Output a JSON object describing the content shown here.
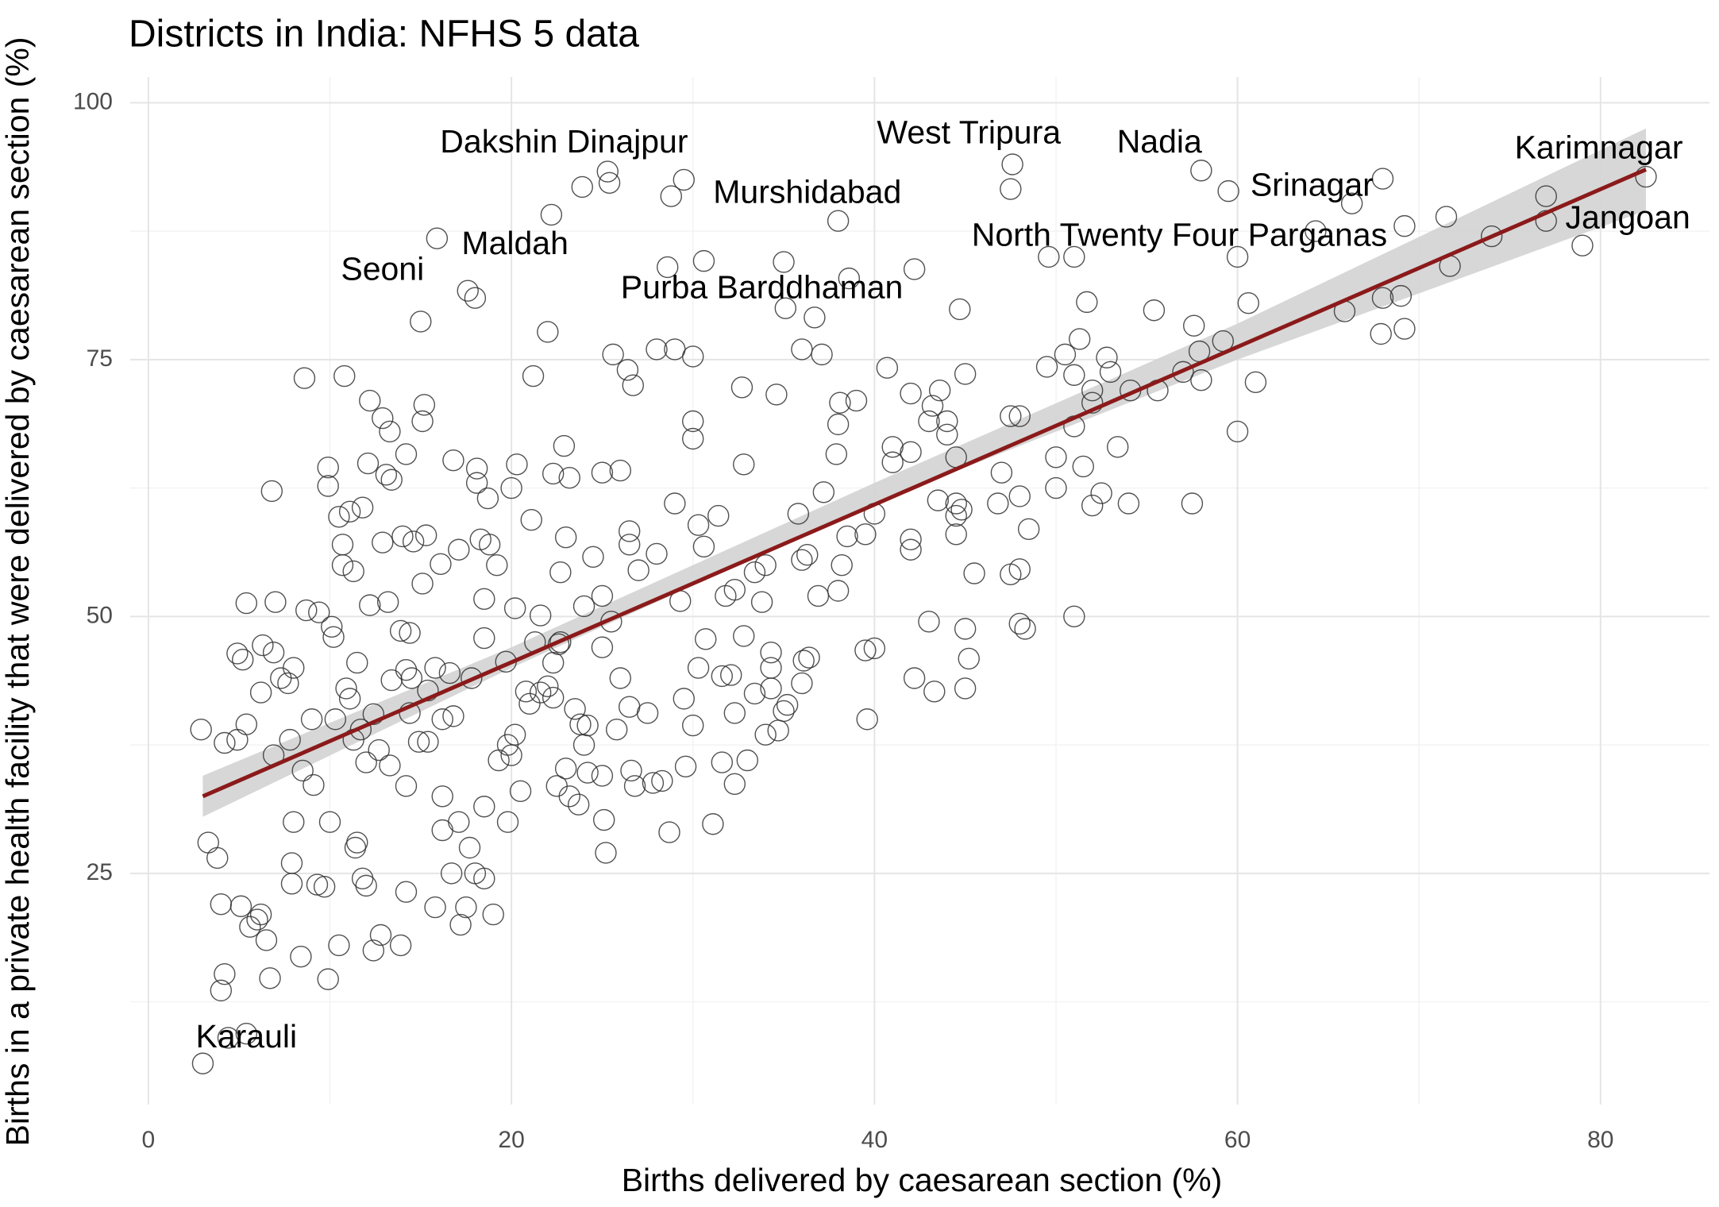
{
  "chart_data": {
    "type": "scatter",
    "title": "Districts in India: NFHS 5 data",
    "xlabel": "Births delivered by caesarean section (%)",
    "ylabel": "Births in a private health facility that were delivered by caesarean section (%)",
    "xlim": [
      -1,
      86
    ],
    "ylim": [
      2.5,
      102.5
    ],
    "xticks": [
      0,
      20,
      40,
      60,
      80
    ],
    "yticks": [
      25,
      50,
      75,
      100
    ],
    "grid": true,
    "series": [
      {
        "color": "#333333",
        "x": [
          25.3,
          25.4,
          29.5,
          28.8,
          23.9,
          22.2,
          38,
          35,
          47.6,
          47.5,
          58,
          59.5,
          68,
          66.3,
          82.5,
          77,
          79,
          77,
          71.5,
          69.2,
          64.3,
          15.9,
          17.6,
          18,
          15,
          22,
          28.6,
          30.6,
          36.7,
          35.1,
          38.6,
          42.2,
          44.7,
          49.6,
          51,
          60,
          60.6,
          51.7,
          55.4,
          57.6,
          59.2,
          57.9,
          65.9,
          68,
          69,
          67.9,
          69.2,
          71.7,
          74,
          25.6,
          26.4,
          26.7,
          28,
          29,
          30,
          32.7,
          34.6,
          37.1,
          36,
          39,
          40.7,
          42,
          43.6,
          43.2,
          44,
          45,
          47.5,
          48,
          49.5,
          50.5,
          51,
          51.3,
          52.8,
          53,
          54.1,
          55.6,
          57,
          58,
          60,
          61,
          52,
          51,
          52,
          53.4,
          54,
          57.5,
          52,
          51.5,
          50,
          50,
          48.5,
          48,
          46.8,
          47,
          48,
          47.5,
          48,
          51,
          45.5,
          44.5,
          45,
          45.2,
          45,
          43.3,
          42.2,
          43,
          42,
          42,
          40,
          39.5,
          39.6,
          38.2,
          38.5,
          39.5,
          40,
          41,
          41,
          42,
          43,
          44,
          44.5,
          37.9,
          38,
          38.1,
          37.2,
          38,
          36.9,
          36.3,
          36,
          35.8,
          34,
          33.4,
          32.8,
          31.4,
          30.3,
          30.6,
          30,
          30,
          29,
          28,
          27,
          26.5,
          26.5,
          26,
          25,
          24.5,
          25,
          24,
          25.5,
          25,
          26,
          26.5,
          27.5,
          28.3,
          29.6,
          28.7,
          30,
          30.3,
          29.5,
          31.1,
          31.6,
          32.1,
          32.3,
          32.8,
          33,
          33.4,
          34.3,
          34.3,
          34.7,
          35,
          36.1,
          36,
          36.4,
          25.1,
          25.2,
          25,
          24.2,
          23.5,
          22.5,
          23.2,
          23.7,
          24,
          21.6,
          21,
          20.2,
          19.8,
          20.5,
          20,
          19,
          18.5,
          18,
          17.2,
          17.5,
          16.7,
          16.2,
          15.8,
          14.2,
          13.9,
          12.8,
          12.4,
          12,
          11.8,
          11.4,
          10.5,
          9.9,
          9.3,
          9.7,
          8.4,
          7.9,
          7.9,
          6.7,
          6.5,
          6.2,
          6,
          5.6,
          5.1,
          4,
          4,
          4.2,
          5.4,
          4.4,
          3,
          2.9,
          3.3,
          3.8,
          4.2,
          4.9,
          5.4,
          4.9,
          5.2,
          5.4,
          6.3,
          6.9,
          7,
          7.3,
          6.2,
          6.9,
          7.7,
          8,
          8.7,
          9.4,
          10.1,
          10.2,
          10.9,
          11.1,
          11.5,
          9.1,
          10,
          8,
          8.5,
          7.8,
          9,
          10.3,
          11.3,
          12,
          13.3,
          14.2,
          14.9,
          15.4,
          16.2,
          17.1,
          17.7,
          18.5,
          19.3,
          19.8,
          8.6,
          6.8,
          9.9,
          9.9,
          10.5,
          11.1,
          10.7,
          10.7,
          11.3,
          10.8,
          12.2,
          12.9,
          13.3,
          12.1,
          13.1,
          13.4,
          14.2,
          15.2,
          15.1,
          16.8,
          18.1,
          18.1,
          18.7,
          18.3,
          18.8,
          19.2,
          20.3,
          20,
          21.1,
          21.2,
          22.3,
          23.2,
          22.9,
          21.6,
          22.7,
          23,
          22.3,
          22.6,
          20.2,
          18.5,
          18.5,
          19.7,
          13.2,
          12.2,
          13.9,
          14.4,
          14,
          14.6,
          15.3,
          16.1,
          17.1,
          15.1,
          12.9,
          11.8,
          14.2,
          14.5,
          13.4,
          15.8,
          16.6,
          17.8,
          16.8,
          16.2,
          15.4,
          14.4,
          12.4,
          11.7,
          11.5,
          12.7,
          26.6,
          26.8,
          27.8,
          25.8,
          29.3,
          30.7,
          31.8,
          32.3,
          33.8,
          34.3,
          35.2,
          31.6,
          32.3,
          34,
          24.2,
          23,
          23.8,
          22.3,
          22,
          20.8,
          21.3,
          22.7,
          44.8,
          44.5,
          44.5,
          43.5,
          48.3,
          52.5
        ],
        "y": [
          93.3,
          92.2,
          92.5,
          90.9,
          91.8,
          89.1,
          88.5,
          84.5,
          94,
          91.6,
          93.4,
          91.4,
          92.6,
          90.2,
          92.8,
          90.9,
          86.1,
          88.5,
          88.9,
          88,
          87.5,
          86.8,
          81.7,
          81,
          78.7,
          77.7,
          84,
          84.6,
          79.1,
          80,
          82.9,
          83.8,
          79.9,
          85,
          85,
          85,
          80.5,
          80.6,
          79.8,
          78.3,
          76.8,
          75.8,
          79.7,
          81,
          81.2,
          77.5,
          78,
          84.1,
          87,
          75.5,
          74,
          72.5,
          76,
          76,
          75.3,
          72.3,
          71.6,
          75.5,
          76,
          71,
          74.2,
          71.7,
          72,
          70.5,
          69,
          73.6,
          69.5,
          69.5,
          74.3,
          75.5,
          73.5,
          77,
          75.2,
          73.8,
          72,
          72,
          73.8,
          73,
          68,
          72.8,
          72,
          68.5,
          70.8,
          66.5,
          61,
          61,
          60.8,
          64.6,
          62.5,
          65.5,
          58.5,
          61.7,
          61,
          64,
          54.6,
          54.1,
          49.3,
          50,
          54.2,
          58,
          48.8,
          45.9,
          43,
          42.7,
          44,
          49.5,
          56.5,
          57.5,
          46.9,
          46.7,
          40,
          55,
          57.8,
          58,
          60,
          65,
          66.5,
          66,
          69,
          67.7,
          65.5,
          65.8,
          68.7,
          70.8,
          62.1,
          52.5,
          52,
          56,
          55.5,
          60,
          55,
          54.3,
          64.8,
          59.8,
          58.9,
          56.8,
          67.3,
          69,
          61,
          56.1,
          54.5,
          57,
          58.3,
          64.2,
          64,
          55.8,
          52,
          51,
          49.5,
          47,
          44,
          41.2,
          40.6,
          34,
          35.4,
          29,
          39.4,
          45,
          42,
          29.8,
          35.8,
          44.3,
          33.7,
          48.1,
          36,
          42.5,
          45,
          43,
          38.9,
          40.8,
          45.7,
          43.5,
          46,
          30.2,
          27,
          34.5,
          39.4,
          41,
          33.5,
          32.5,
          31.7,
          37.5,
          42.6,
          41.5,
          38.5,
          30,
          33,
          36.5,
          21,
          24.5,
          25,
          20,
          21.7,
          25,
          29.2,
          21.7,
          23.2,
          18,
          19,
          17.5,
          23.8,
          24.5,
          27.5,
          18,
          14.7,
          23.9,
          23.7,
          16.9,
          24,
          26,
          14.8,
          18.5,
          21,
          20.5,
          19.8,
          21.8,
          22,
          13.6,
          15.2,
          9.4,
          9,
          6.5,
          39,
          28,
          26.5,
          37.7,
          38,
          39.5,
          46.4,
          45.8,
          51.3,
          47.2,
          46.5,
          51.4,
          44,
          42.6,
          36.5,
          43.5,
          45,
          50.6,
          50.4,
          49,
          48,
          43,
          42,
          45.5,
          33.6,
          30,
          30,
          35,
          38,
          40,
          40,
          38,
          35.8,
          35.5,
          33.5,
          37.8,
          37.8,
          32.5,
          30,
          27.5,
          31.5,
          36,
          37.5,
          73.2,
          62.2,
          64.5,
          62.7,
          59.7,
          60.2,
          55,
          57,
          54.4,
          73.4,
          71,
          69.3,
          68,
          64.9,
          63.8,
          63.3,
          65.8,
          70.6,
          69,
          65.2,
          64.4,
          63,
          61.5,
          57.5,
          57,
          55,
          64.8,
          62.5,
          59.4,
          73.4,
          63.9,
          63.5,
          66.6,
          50.1,
          54.3,
          57.7,
          45.5,
          47.3,
          50.8,
          51.7,
          47.9,
          45.6,
          51.4,
          51.1,
          48.6,
          48.4,
          57.8,
          57.3,
          57.9,
          55.1,
          56.5,
          53.2,
          57.2,
          60.6,
          44.8,
          44,
          43.8,
          45,
          44.5,
          44,
          40.3,
          40,
          42.8,
          40.6,
          40.5,
          39,
          28,
          37,
          35,
          33.5,
          33.8,
          39,
          51.5,
          47.8,
          52,
          52.6,
          51.4,
          46.5,
          41.4,
          44.2,
          40.6,
          38.5,
          34.8,
          35.2,
          39.5,
          42.1,
          43.2,
          42.7,
          47.5,
          47.5,
          60.4,
          59.8,
          61,
          61.3,
          48.8,
          62
        ]
      }
    ],
    "fit": {
      "color": "#8b1a1a",
      "x": [
        3,
        82.5
      ],
      "y": [
        32.5,
        93.5
      ]
    },
    "band": {
      "color": "#d3d3d3",
      "x": [
        3,
        20,
        40,
        60,
        82.5
      ],
      "lower": [
        30.5,
        45,
        61,
        75,
        89.5
      ],
      "upper": [
        34.5,
        47,
        63,
        78.5,
        97.5
      ]
    },
    "annotations": [
      {
        "text": "Dakshin Dinajpur",
        "x": 22.9,
        "y": 96.0
      },
      {
        "text": "West Tripura",
        "x": 45.2,
        "y": 96.9
      },
      {
        "text": "Nadia",
        "x": 55.7,
        "y": 96.0
      },
      {
        "text": "Karimnagar",
        "x": 79.9,
        "y": 95.4
      },
      {
        "text": "Murshidabad",
        "x": 36.3,
        "y": 91.1
      },
      {
        "text": "Srinagar",
        "x": 64.1,
        "y": 91.8
      },
      {
        "text": "Jangoan",
        "x": 81.5,
        "y": 88.6
      },
      {
        "text": "North Twenty Four Parganas",
        "x": 56.8,
        "y": 86.9
      },
      {
        "text": "Maldah",
        "x": 20.2,
        "y": 86.1
      },
      {
        "text": "Seoni",
        "x": 12.9,
        "y": 83.6
      },
      {
        "text": "Purba Barddhaman",
        "x": 33.8,
        "y": 81.8
      },
      {
        "text": "Karauli",
        "x": 5.4,
        "y": 8.9
      }
    ]
  }
}
